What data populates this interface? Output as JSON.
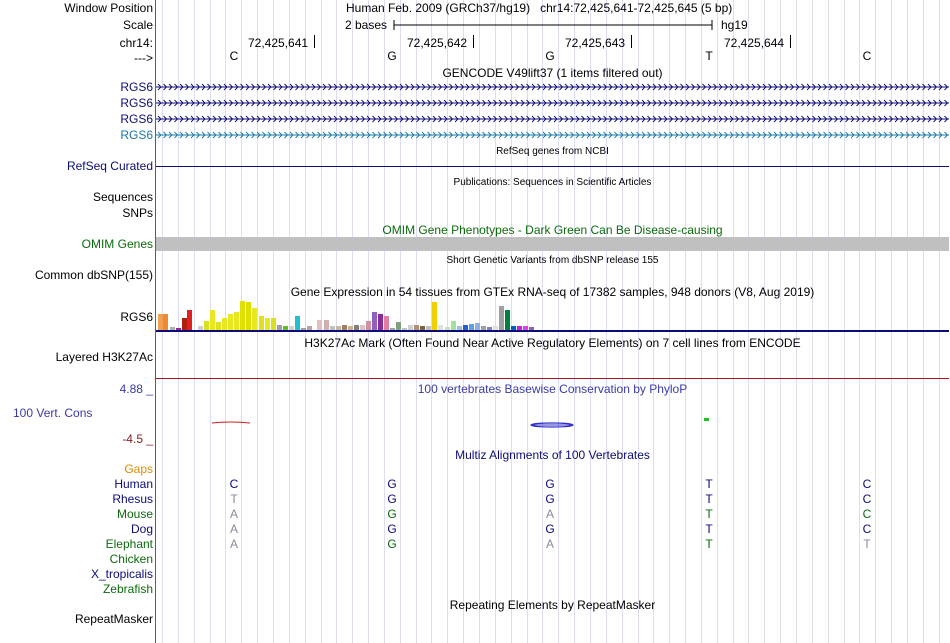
{
  "header": {
    "window_position_label": "Window Position",
    "scale_label": "Scale",
    "chrom_label": "chr14:",
    "strand_label": "--->",
    "assembly_text": "Human Feb. 2009 (GRCh37/hg19)   chr14:72,425,641-72,425,645 (5 bp)",
    "scale_text": "2 bases",
    "db_label": "hg19",
    "positions": [
      "72,425,641",
      "72,425,642",
      "72,425,643",
      "72,425,644"
    ],
    "bases": [
      "C",
      "G",
      "G",
      "T",
      "C"
    ]
  },
  "tracks": {
    "gencode": {
      "title": "GENCODE V49lift37 (1 items filtered out)",
      "genes": [
        {
          "name": "RGS6",
          "color": "#0c0c78"
        },
        {
          "name": "RGS6",
          "color": "#0c0c78"
        },
        {
          "name": "RGS6",
          "color": "#0c0c78"
        },
        {
          "name": "RGS6",
          "color": "#1a7aa8"
        }
      ]
    },
    "refseq": {
      "title": "RefSeq genes from NCBI",
      "label": "RefSeq Curated",
      "color": "#0c0c78"
    },
    "publications": {
      "title": "Publications: Sequences in Scientific Articles",
      "label1": "Sequences",
      "label2": "SNPs"
    },
    "omim": {
      "title": "OMIM Gene Phenotypes - Dark Green Can Be Disease-causing",
      "label": "OMIM Genes",
      "color": "#0b6b0b"
    },
    "dbsnp": {
      "title": "Short Genetic Variants from dbSNP release 155",
      "label": "Common dbSNP(155)"
    },
    "gtex": {
      "title": "Gene Expression in 54 tissues from GTEx RNA-seq of 17382 samples, 948 donors (V8, Aug 2019)",
      "label": "RGS6"
    },
    "h3k27ac": {
      "title": "H3K27Ac Mark (Often Found Near Active Regulatory Elements) on 7 cell lines from ENCODE",
      "label": "Layered H3K27Ac"
    },
    "cons": {
      "title": "100 vertebrates Basewise Conservation by PhyloP",
      "label": "100 Vert. Cons",
      "max": "4.88 _",
      "min": "-4.5 _"
    },
    "multiz": {
      "title": "Multiz Alignments of 100 Vertebrates",
      "gaps_label": "Gaps",
      "species": [
        {
          "name": "Human",
          "color": "#0c0c78",
          "bases": [
            "C",
            "G",
            "G",
            "T",
            "C"
          ],
          "mismatch": [
            false,
            false,
            false,
            false,
            false
          ]
        },
        {
          "name": "Rhesus",
          "color": "#0c0c78",
          "bases": [
            "T",
            "G",
            "G",
            "T",
            "C"
          ],
          "mismatch": [
            true,
            false,
            false,
            false,
            false
          ]
        },
        {
          "name": "Mouse",
          "color": "#0b6b0b",
          "bases": [
            "A",
            "G",
            "A",
            "T",
            "C"
          ],
          "mismatch": [
            true,
            false,
            true,
            false,
            false
          ]
        },
        {
          "name": "Dog",
          "color": "#0c0c78",
          "bases": [
            "A",
            "G",
            "G",
            "T",
            "C"
          ],
          "mismatch": [
            true,
            false,
            false,
            false,
            false
          ]
        },
        {
          "name": "Elephant",
          "color": "#0b6b0b",
          "bases": [
            "A",
            "G",
            "A",
            "T",
            "T"
          ],
          "mismatch": [
            true,
            false,
            true,
            false,
            true
          ]
        },
        {
          "name": "Chicken",
          "color": "#0b6b0b",
          "bases": [
            "",
            "",
            "",
            "",
            ""
          ],
          "mismatch": [
            false,
            false,
            false,
            false,
            false
          ]
        },
        {
          "name": "X_tropicalis",
          "color": "#0c0c78",
          "bases": [
            "",
            "",
            "",
            "",
            ""
          ],
          "mismatch": [
            false,
            false,
            false,
            false,
            false
          ]
        },
        {
          "name": "Zebrafish",
          "color": "#0b6b0b",
          "bases": [
            "",
            "",
            "",
            "",
            ""
          ],
          "mismatch": [
            false,
            false,
            false,
            false,
            false
          ]
        }
      ]
    },
    "repeatmasker": {
      "title": "Repeating Elements by RepeatMasker",
      "label": "RepeatMasker"
    }
  },
  "colors": {
    "accent_red": "#b0141c",
    "conservation_blue": "#3a3aa8",
    "navy": "#0c0c78",
    "gaps_orange": "#e08c00"
  }
}
